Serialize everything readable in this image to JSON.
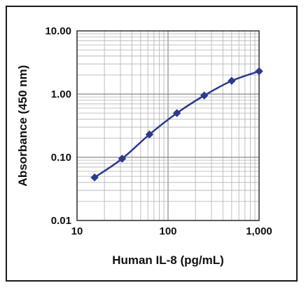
{
  "chart_data": {
    "type": "line",
    "title": "",
    "xlabel": "Human IL-8 (pg/mL)",
    "ylabel": "Absorbance (450 nm)",
    "x_scale": "log",
    "y_scale": "log",
    "xlim": [
      10,
      1000
    ],
    "ylim": [
      0.01,
      10
    ],
    "x_ticks": [
      10,
      100,
      1000
    ],
    "x_tick_labels": [
      "10",
      "100",
      "1,000"
    ],
    "y_ticks": [
      0.01,
      0.1,
      1,
      10
    ],
    "y_tick_labels": [
      "0.01",
      "0.10",
      "1.00",
      "10.00"
    ],
    "grid": true,
    "series": [
      {
        "x": [
          15.6,
          31.3,
          62.5,
          125,
          250,
          500,
          1000
        ],
        "y": [
          0.048,
          0.095,
          0.23,
          0.5,
          0.95,
          1.62,
          2.3
        ]
      }
    ],
    "colors": {
      "line": "#2b3a8c",
      "grid": "#b0b0b0",
      "axis": "#333333"
    }
  }
}
